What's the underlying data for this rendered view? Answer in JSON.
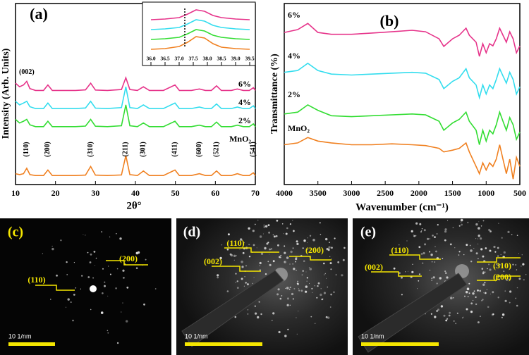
{
  "chart_data": [
    {
      "type": "line",
      "panel_label": "(a)",
      "xlabel": "2θ°",
      "ylabel": "Intensity (Arb. Units)",
      "xlim": [
        10,
        70
      ],
      "xticks": [
        10,
        20,
        30,
        40,
        50,
        60,
        70
      ],
      "ylim": [
        0,
        100
      ],
      "x": [
        10,
        11,
        12,
        12.8,
        13.6,
        15,
        17,
        18.1,
        19.2,
        22,
        25,
        27.5,
        28.8,
        30,
        33,
        36.5,
        37.6,
        38.6,
        40.5,
        42,
        43.5,
        47,
        49.9,
        51,
        54,
        56,
        57.5,
        59,
        60.3,
        61.5,
        64,
        65.5,
        67,
        68.5,
        69.5,
        70
      ],
      "series": [
        {
          "name": "6%",
          "color": "#e6338a",
          "values": [
            56,
            54,
            55,
            57,
            53,
            52,
            52,
            55,
            52,
            52,
            52,
            52.3,
            56,
            52.2,
            52,
            52.5,
            59,
            52.5,
            52,
            54,
            52,
            52,
            55,
            52,
            52,
            52.8,
            52,
            52,
            54.5,
            52,
            52,
            52.8,
            52,
            52,
            53.5,
            52
          ]
        },
        {
          "name": "4%",
          "color": "#33ddee",
          "values": [
            46,
            44,
            45,
            46,
            43,
            42,
            42,
            45,
            42,
            42,
            42,
            42.3,
            46,
            42.2,
            42,
            42.5,
            54,
            42.5,
            42,
            44,
            42,
            42,
            45,
            42,
            42,
            42.8,
            42,
            42,
            44.5,
            42,
            42,
            42.8,
            42,
            42,
            43.5,
            42
          ]
        },
        {
          "name": "2%",
          "color": "#33dd33",
          "values": [
            36,
            34,
            35,
            36,
            33,
            32,
            32,
            35,
            32,
            32,
            32,
            32.3,
            36,
            32.2,
            32,
            32.5,
            44,
            32.5,
            32,
            34,
            32,
            32,
            35,
            32,
            32,
            32.8,
            32,
            32,
            34.5,
            32,
            32,
            32.8,
            32,
            32,
            33.5,
            32
          ]
        },
        {
          "name": "MnO₂",
          "color": "#f08020",
          "values": [
            6,
            5.5,
            6,
            9,
            5.5,
            5,
            5,
            8,
            5,
            5,
            5,
            5.2,
            10,
            5.2,
            5,
            5.3,
            16,
            5.5,
            5,
            7.5,
            5,
            5,
            8,
            5,
            5,
            6,
            5,
            5,
            7.5,
            5,
            5,
            6,
            5,
            5,
            6.5,
            5
          ]
        }
      ],
      "annotations": [
        {
          "label": "(002)",
          "x": 12.8,
          "y": 62
        }
      ],
      "peak_labels": [
        {
          "label": "(110)",
          "x": 12.8
        },
        {
          "label": "(200)",
          "x": 18.1
        },
        {
          "label": "(310)",
          "x": 28.8
        },
        {
          "label": "(211)",
          "x": 37.6
        },
        {
          "label": "(301)",
          "x": 42
        },
        {
          "label": "(411)",
          "x": 49.9
        },
        {
          "label": "(600)",
          "x": 56
        },
        {
          "label": "(521)",
          "x": 60.3
        },
        {
          "label": "(541)",
          "x": 69.5
        }
      ]
    },
    {
      "type": "line",
      "xlim": [
        35.8,
        39.6
      ],
      "ylim": [
        0,
        31
      ],
      "xticks": [
        {
          "value": 36,
          "label": "36.0"
        },
        {
          "value": 36.5,
          "label": "36.5"
        },
        {
          "value": 37,
          "label": "37.0"
        },
        {
          "value": 37.5,
          "label": "37.5"
        },
        {
          "value": 38,
          "label": "38.0"
        },
        {
          "value": 38.5,
          "label": "38.5"
        },
        {
          "value": 39,
          "label": "39.0"
        },
        {
          "value": 39.5,
          "label": "39.5"
        }
      ],
      "x": [
        36,
        36.5,
        37,
        37.3,
        37.6,
        37.9,
        38.2,
        38.5,
        39,
        39.5
      ],
      "series": [
        {
          "color": "#e6338a",
          "values": [
            22,
            22.5,
            23.5,
            26,
            29,
            28,
            25,
            23.5,
            22.5,
            22
          ]
        },
        {
          "color": "#33ddee",
          "values": [
            15,
            15.5,
            16.5,
            19,
            22,
            21,
            18,
            16.5,
            15.5,
            15
          ]
        },
        {
          "color": "#33dd33",
          "values": [
            8,
            8.5,
            9.5,
            12,
            15,
            14,
            11,
            9.5,
            8.5,
            8
          ]
        },
        {
          "color": "#f08020",
          "values": [
            1,
            1.5,
            3,
            6,
            10,
            9,
            5,
            2.5,
            1.5,
            1
          ]
        }
      ]
    },
    {
      "type": "line",
      "panel_label": "(b)",
      "xlabel": "Wavenumber (cm⁻¹)",
      "ylabel": "Transmittance (%)",
      "xlim": [
        4000,
        500
      ],
      "xticks": [
        4000,
        3500,
        3000,
        2500,
        2000,
        1500,
        1000,
        500
      ],
      "ylim": [
        0,
        100
      ],
      "x": [
        4000,
        3800,
        3650,
        3500,
        3300,
        3000,
        2700,
        2400,
        2100,
        1900,
        1700,
        1630,
        1500,
        1400,
        1300,
        1250,
        1150,
        1100,
        1050,
        1000,
        950,
        900,
        850,
        800,
        750,
        700,
        650,
        600,
        550,
        500
      ],
      "series": [
        {
          "name": "6%",
          "color": "#e6338a",
          "values": [
            84,
            85.6,
            89,
            84,
            83,
            83,
            83.7,
            84.4,
            85.2,
            84.4,
            80.5,
            76.3,
            80.5,
            82.5,
            86.4,
            82.5,
            78.6,
            70.8,
            77.8,
            72.8,
            77.8,
            76.6,
            80.5,
            86.4,
            82.5,
            78.6,
            84.4,
            80.5,
            72.8,
            76.6
          ]
        },
        {
          "name": "4%",
          "color": "#33ddee",
          "values": [
            62,
            63,
            67,
            63,
            61,
            60.5,
            61,
            61.5,
            62,
            61.5,
            58,
            53,
            57,
            59,
            64,
            59,
            55,
            48,
            55,
            50,
            55,
            53,
            58,
            64,
            60,
            56,
            62,
            58,
            50,
            54
          ]
        },
        {
          "name": "2%",
          "color": "#33dd33",
          "values": [
            39,
            40,
            44,
            41,
            38,
            37.5,
            38,
            38.5,
            39,
            38.5,
            35,
            30,
            34,
            36,
            40,
            35,
            30,
            22,
            30,
            24,
            30,
            28,
            33,
            40,
            35,
            30,
            37,
            33,
            25,
            29
          ]
        },
        {
          "name": "MnO₂",
          "color": "#f08020",
          "values": [
            22,
            23,
            26,
            24,
            23,
            22,
            22,
            22.5,
            22,
            21.5,
            20,
            18,
            19,
            20,
            23,
            18,
            10,
            6,
            12,
            8,
            12,
            10,
            14,
            22,
            14,
            6,
            14,
            3,
            15,
            10
          ]
        }
      ]
    }
  ],
  "panels": [
    {
      "label": "(c)",
      "spots": [
        "(110)",
        "(200)"
      ],
      "scale": "10 1/nm"
    },
    {
      "label": "(d)",
      "spots": [
        "(110)",
        "(002)",
        "(200)"
      ],
      "scale": "10 1/nm"
    },
    {
      "label": "(e)",
      "spots": [
        "(110)",
        "(002)",
        "(310)",
        "(200)"
      ],
      "scale": "10 1/nm"
    }
  ]
}
